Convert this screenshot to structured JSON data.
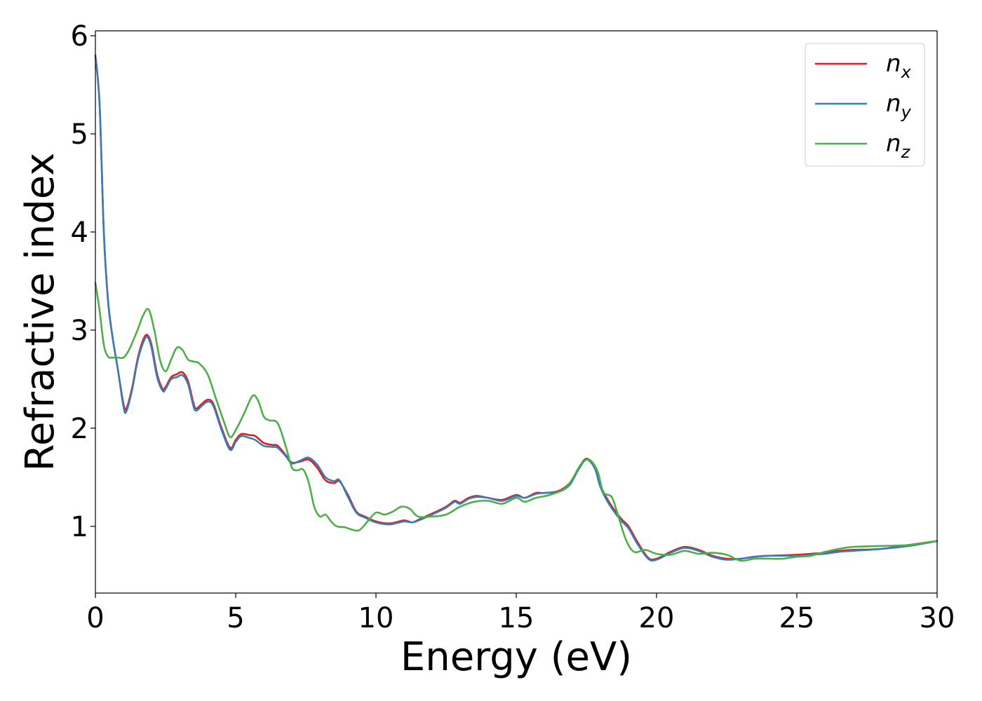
{
  "chart_data": {
    "type": "line",
    "xlabel": "Energy (eV)",
    "ylabel": "Refractive index",
    "xlim": [
      0,
      30
    ],
    "ylim": [
      0.32,
      6.05
    ],
    "xticks": [
      0,
      5,
      10,
      15,
      20,
      25,
      30
    ],
    "yticks": [
      1,
      2,
      3,
      4,
      5,
      6
    ],
    "grid": false,
    "legend_position": "top-right",
    "series": [
      {
        "name": "n_x",
        "legend_base": "n",
        "legend_sub": "x",
        "color": "#e41a1c",
        "points": [
          [
            0,
            5.8
          ],
          [
            0.15,
            5.3
          ],
          [
            0.3,
            4.0
          ],
          [
            0.45,
            3.3
          ],
          [
            0.6,
            2.95
          ],
          [
            0.8,
            2.6
          ],
          [
            1.0,
            2.25
          ],
          [
            1.1,
            2.2
          ],
          [
            1.3,
            2.4
          ],
          [
            1.5,
            2.7
          ],
          [
            1.7,
            2.9
          ],
          [
            1.85,
            2.95
          ],
          [
            2.0,
            2.85
          ],
          [
            2.2,
            2.55
          ],
          [
            2.4,
            2.4
          ],
          [
            2.5,
            2.42
          ],
          [
            2.7,
            2.52
          ],
          [
            2.9,
            2.55
          ],
          [
            3.1,
            2.57
          ],
          [
            3.3,
            2.48
          ],
          [
            3.5,
            2.25
          ],
          [
            3.6,
            2.2
          ],
          [
            3.8,
            2.25
          ],
          [
            4.0,
            2.29
          ],
          [
            4.2,
            2.25
          ],
          [
            4.5,
            2.0
          ],
          [
            4.8,
            1.8
          ],
          [
            5.0,
            1.88
          ],
          [
            5.2,
            1.94
          ],
          [
            5.5,
            1.93
          ],
          [
            5.7,
            1.92
          ],
          [
            6.0,
            1.85
          ],
          [
            6.3,
            1.83
          ],
          [
            6.5,
            1.82
          ],
          [
            6.8,
            1.72
          ],
          [
            7.0,
            1.65
          ],
          [
            7.3,
            1.66
          ],
          [
            7.6,
            1.68
          ],
          [
            7.9,
            1.6
          ],
          [
            8.2,
            1.47
          ],
          [
            8.5,
            1.44
          ],
          [
            8.7,
            1.46
          ],
          [
            9.0,
            1.32
          ],
          [
            9.3,
            1.15
          ],
          [
            9.6,
            1.1
          ],
          [
            10.0,
            1.05
          ],
          [
            10.5,
            1.03
          ],
          [
            11.0,
            1.06
          ],
          [
            11.3,
            1.04
          ],
          [
            11.6,
            1.08
          ],
          [
            12.0,
            1.13
          ],
          [
            12.5,
            1.2
          ],
          [
            12.8,
            1.26
          ],
          [
            13.0,
            1.24
          ],
          [
            13.3,
            1.29
          ],
          [
            13.6,
            1.31
          ],
          [
            14.0,
            1.29
          ],
          [
            14.5,
            1.27
          ],
          [
            15.0,
            1.32
          ],
          [
            15.3,
            1.29
          ],
          [
            15.7,
            1.34
          ],
          [
            16.0,
            1.34
          ],
          [
            16.5,
            1.36
          ],
          [
            16.9,
            1.44
          ],
          [
            17.2,
            1.58
          ],
          [
            17.5,
            1.69
          ],
          [
            17.8,
            1.6
          ],
          [
            18.0,
            1.42
          ],
          [
            18.3,
            1.25
          ],
          [
            18.7,
            1.09
          ],
          [
            19.0,
            1.0
          ],
          [
            19.3,
            0.85
          ],
          [
            19.7,
            0.68
          ],
          [
            20.0,
            0.67
          ],
          [
            20.5,
            0.74
          ],
          [
            21.0,
            0.79
          ],
          [
            21.5,
            0.76
          ],
          [
            22.0,
            0.7
          ],
          [
            22.5,
            0.67
          ],
          [
            23.0,
            0.67
          ],
          [
            23.5,
            0.69
          ],
          [
            24.0,
            0.7
          ],
          [
            25.0,
            0.71
          ],
          [
            25.5,
            0.72
          ],
          [
            26.0,
            0.73
          ],
          [
            26.5,
            0.75
          ],
          [
            27.0,
            0.76
          ],
          [
            28.0,
            0.77
          ],
          [
            29.0,
            0.81
          ],
          [
            30.0,
            0.85
          ]
        ]
      },
      {
        "name": "n_y",
        "legend_base": "n",
        "legend_sub": "y",
        "color": "#377eb8",
        "points": [
          [
            0,
            5.8
          ],
          [
            0.15,
            5.3
          ],
          [
            0.3,
            4.0
          ],
          [
            0.45,
            3.3
          ],
          [
            0.6,
            2.95
          ],
          [
            0.8,
            2.6
          ],
          [
            1.0,
            2.22
          ],
          [
            1.1,
            2.17
          ],
          [
            1.3,
            2.38
          ],
          [
            1.5,
            2.68
          ],
          [
            1.7,
            2.87
          ],
          [
            1.85,
            2.93
          ],
          [
            2.0,
            2.82
          ],
          [
            2.2,
            2.52
          ],
          [
            2.4,
            2.38
          ],
          [
            2.5,
            2.4
          ],
          [
            2.7,
            2.5
          ],
          [
            2.9,
            2.52
          ],
          [
            3.1,
            2.54
          ],
          [
            3.3,
            2.45
          ],
          [
            3.5,
            2.22
          ],
          [
            3.6,
            2.18
          ],
          [
            3.8,
            2.23
          ],
          [
            4.0,
            2.27
          ],
          [
            4.2,
            2.23
          ],
          [
            4.5,
            1.98
          ],
          [
            4.8,
            1.78
          ],
          [
            5.0,
            1.86
          ],
          [
            5.2,
            1.92
          ],
          [
            5.5,
            1.9
          ],
          [
            5.7,
            1.88
          ],
          [
            6.0,
            1.82
          ],
          [
            6.3,
            1.81
          ],
          [
            6.5,
            1.8
          ],
          [
            6.8,
            1.71
          ],
          [
            7.0,
            1.64
          ],
          [
            7.3,
            1.67
          ],
          [
            7.6,
            1.7
          ],
          [
            7.9,
            1.63
          ],
          [
            8.2,
            1.5
          ],
          [
            8.5,
            1.46
          ],
          [
            8.7,
            1.47
          ],
          [
            9.0,
            1.3
          ],
          [
            9.3,
            1.14
          ],
          [
            9.6,
            1.09
          ],
          [
            10.0,
            1.04
          ],
          [
            10.5,
            1.02
          ],
          [
            11.0,
            1.05
          ],
          [
            11.3,
            1.04
          ],
          [
            11.6,
            1.07
          ],
          [
            12.0,
            1.12
          ],
          [
            12.5,
            1.19
          ],
          [
            12.8,
            1.25
          ],
          [
            13.0,
            1.23
          ],
          [
            13.3,
            1.28
          ],
          [
            13.6,
            1.3
          ],
          [
            14.0,
            1.29
          ],
          [
            14.5,
            1.26
          ],
          [
            15.0,
            1.31
          ],
          [
            15.3,
            1.29
          ],
          [
            15.7,
            1.33
          ],
          [
            16.0,
            1.34
          ],
          [
            16.5,
            1.35
          ],
          [
            16.9,
            1.42
          ],
          [
            17.2,
            1.57
          ],
          [
            17.5,
            1.68
          ],
          [
            17.8,
            1.59
          ],
          [
            18.0,
            1.4
          ],
          [
            18.3,
            1.23
          ],
          [
            18.7,
            1.07
          ],
          [
            19.0,
            0.98
          ],
          [
            19.3,
            0.83
          ],
          [
            19.7,
            0.67
          ],
          [
            20.0,
            0.66
          ],
          [
            20.5,
            0.73
          ],
          [
            21.0,
            0.78
          ],
          [
            21.5,
            0.75
          ],
          [
            22.0,
            0.69
          ],
          [
            22.5,
            0.66
          ],
          [
            23.0,
            0.67
          ],
          [
            23.5,
            0.69
          ],
          [
            24.0,
            0.7
          ],
          [
            25.0,
            0.7
          ],
          [
            25.5,
            0.71
          ],
          [
            26.0,
            0.72
          ],
          [
            26.5,
            0.74
          ],
          [
            27.0,
            0.75
          ],
          [
            28.0,
            0.77
          ],
          [
            29.0,
            0.8
          ],
          [
            30.0,
            0.85
          ]
        ]
      },
      {
        "name": "n_z",
        "legend_base": "n",
        "legend_sub": "z",
        "color": "#4daf4a",
        "points": [
          [
            0,
            3.48
          ],
          [
            0.15,
            3.2
          ],
          [
            0.3,
            2.85
          ],
          [
            0.45,
            2.73
          ],
          [
            0.6,
            2.72
          ],
          [
            0.8,
            2.72
          ],
          [
            1.0,
            2.72
          ],
          [
            1.2,
            2.8
          ],
          [
            1.5,
            3.0
          ],
          [
            1.7,
            3.15
          ],
          [
            1.9,
            3.21
          ],
          [
            2.1,
            3.0
          ],
          [
            2.3,
            2.7
          ],
          [
            2.5,
            2.58
          ],
          [
            2.7,
            2.7
          ],
          [
            2.9,
            2.82
          ],
          [
            3.1,
            2.8
          ],
          [
            3.3,
            2.7
          ],
          [
            3.5,
            2.68
          ],
          [
            3.7,
            2.66
          ],
          [
            4.0,
            2.55
          ],
          [
            4.3,
            2.3
          ],
          [
            4.6,
            2.05
          ],
          [
            4.8,
            1.91
          ],
          [
            5.0,
            1.98
          ],
          [
            5.3,
            2.15
          ],
          [
            5.6,
            2.33
          ],
          [
            5.8,
            2.28
          ],
          [
            6.0,
            2.12
          ],
          [
            6.2,
            2.08
          ],
          [
            6.5,
            2.05
          ],
          [
            6.8,
            1.8
          ],
          [
            7.0,
            1.6
          ],
          [
            7.2,
            1.57
          ],
          [
            7.4,
            1.58
          ],
          [
            7.6,
            1.45
          ],
          [
            7.8,
            1.2
          ],
          [
            8.0,
            1.1
          ],
          [
            8.2,
            1.12
          ],
          [
            8.4,
            1.05
          ],
          [
            8.6,
            1.0
          ],
          [
            8.9,
            0.99
          ],
          [
            9.1,
            0.97
          ],
          [
            9.4,
            0.96
          ],
          [
            9.7,
            1.05
          ],
          [
            10.0,
            1.14
          ],
          [
            10.3,
            1.12
          ],
          [
            10.6,
            1.15
          ],
          [
            10.9,
            1.2
          ],
          [
            11.2,
            1.18
          ],
          [
            11.5,
            1.1
          ],
          [
            12.0,
            1.1
          ],
          [
            12.5,
            1.12
          ],
          [
            13.0,
            1.2
          ],
          [
            13.5,
            1.25
          ],
          [
            14.0,
            1.26
          ],
          [
            14.5,
            1.23
          ],
          [
            15.0,
            1.29
          ],
          [
            15.3,
            1.25
          ],
          [
            15.7,
            1.29
          ],
          [
            16.2,
            1.32
          ],
          [
            16.7,
            1.38
          ],
          [
            17.0,
            1.48
          ],
          [
            17.3,
            1.63
          ],
          [
            17.6,
            1.68
          ],
          [
            17.9,
            1.56
          ],
          [
            18.1,
            1.35
          ],
          [
            18.4,
            1.3
          ],
          [
            18.6,
            1.14
          ],
          [
            18.9,
            0.87
          ],
          [
            19.2,
            0.74
          ],
          [
            19.6,
            0.76
          ],
          [
            20.0,
            0.72
          ],
          [
            20.5,
            0.71
          ],
          [
            21.0,
            0.75
          ],
          [
            21.5,
            0.72
          ],
          [
            22.0,
            0.73
          ],
          [
            22.5,
            0.71
          ],
          [
            23.0,
            0.65
          ],
          [
            23.5,
            0.67
          ],
          [
            24.0,
            0.67
          ],
          [
            24.5,
            0.67
          ],
          [
            25.0,
            0.69
          ],
          [
            25.5,
            0.7
          ],
          [
            26.0,
            0.74
          ],
          [
            26.5,
            0.77
          ],
          [
            27.0,
            0.79
          ],
          [
            28.0,
            0.8
          ],
          [
            29.0,
            0.81
          ],
          [
            30.0,
            0.85
          ]
        ]
      }
    ]
  }
}
